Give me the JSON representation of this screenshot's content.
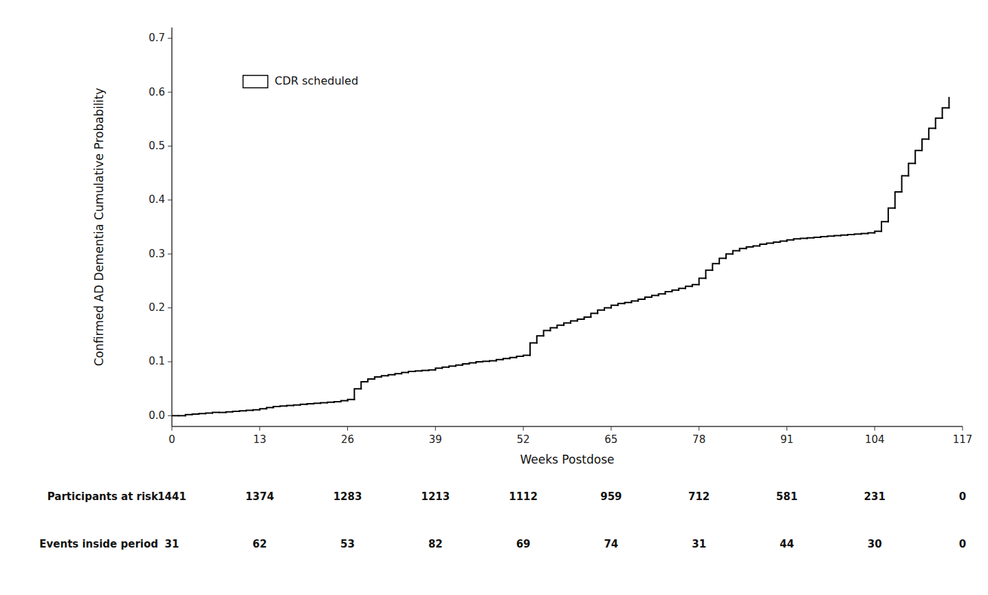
{
  "chart_data": {
    "type": "step",
    "xlabel": "Weeks Postdose",
    "ylabel": "Confirmed AD Dementia Cumulative Probability",
    "xlim": [
      0,
      117
    ],
    "ylim": [
      -0.02,
      0.72
    ],
    "xticks": [
      0,
      13,
      26,
      39,
      52,
      65,
      78,
      91,
      104,
      117
    ],
    "yticks": [
      {
        "value": 0.0,
        "label": "0.0"
      },
      0.1,
      0.2,
      0.3,
      0.4,
      0.5,
      0.6,
      0.7
    ],
    "grid": false,
    "legend": "upper left",
    "x": [
      0,
      1,
      2,
      3,
      4,
      5,
      6,
      7,
      8,
      9,
      10,
      11,
      12,
      13,
      14,
      15,
      16,
      17,
      18,
      19,
      20,
      21,
      22,
      23,
      24,
      25,
      26,
      27,
      28,
      29,
      30,
      31,
      32,
      33,
      34,
      35,
      36,
      37,
      38,
      39,
      40,
      41,
      42,
      43,
      44,
      45,
      46,
      47,
      48,
      49,
      50,
      51,
      52,
      53,
      54,
      55,
      56,
      57,
      58,
      59,
      60,
      61,
      62,
      63,
      64,
      65,
      66,
      67,
      68,
      69,
      70,
      71,
      72,
      73,
      74,
      75,
      76,
      77,
      78,
      79,
      80,
      81,
      82,
      83,
      84,
      85,
      86,
      87,
      88,
      89,
      90,
      91,
      92,
      93,
      94,
      95,
      96,
      97,
      98,
      99,
      100,
      101,
      102,
      103,
      104,
      105,
      106,
      107,
      108,
      109,
      110,
      111,
      112,
      113,
      114,
      115
    ],
    "series": [
      {
        "name": "CDR scheduled",
        "color": "#000000",
        "values": [
          0.0,
          0.0,
          0.002,
          0.003,
          0.004,
          0.005,
          0.006,
          0.006,
          0.007,
          0.008,
          0.009,
          0.01,
          0.011,
          0.013,
          0.015,
          0.017,
          0.018,
          0.019,
          0.02,
          0.021,
          0.022,
          0.023,
          0.024,
          0.025,
          0.026,
          0.028,
          0.03,
          0.05,
          0.063,
          0.068,
          0.072,
          0.074,
          0.076,
          0.078,
          0.08,
          0.082,
          0.083,
          0.084,
          0.085,
          0.088,
          0.09,
          0.092,
          0.094,
          0.096,
          0.098,
          0.1,
          0.101,
          0.102,
          0.104,
          0.106,
          0.108,
          0.11,
          0.112,
          0.135,
          0.148,
          0.158,
          0.163,
          0.168,
          0.172,
          0.176,
          0.179,
          0.183,
          0.19,
          0.196,
          0.2,
          0.205,
          0.208,
          0.21,
          0.213,
          0.216,
          0.22,
          0.223,
          0.226,
          0.23,
          0.233,
          0.236,
          0.24,
          0.243,
          0.255,
          0.27,
          0.282,
          0.292,
          0.3,
          0.306,
          0.31,
          0.313,
          0.315,
          0.318,
          0.32,
          0.322,
          0.324,
          0.326,
          0.328,
          0.329,
          0.33,
          0.331,
          0.332,
          0.333,
          0.334,
          0.335,
          0.336,
          0.337,
          0.338,
          0.339,
          0.342,
          0.36,
          0.385,
          0.415,
          0.445,
          0.468,
          0.492,
          0.513,
          0.533,
          0.552,
          0.571,
          0.59
        ]
      }
    ],
    "table": {
      "x": [
        0,
        13,
        26,
        39,
        52,
        65,
        78,
        91,
        104,
        117
      ],
      "rows": [
        {
          "label": "Participants at risk",
          "values": [
            1441,
            1374,
            1283,
            1213,
            1112,
            959,
            712,
            581,
            231,
            0
          ]
        },
        {
          "label": "Events inside period",
          "values": [
            31,
            62,
            53,
            82,
            69,
            74,
            31,
            44,
            30,
            0
          ]
        }
      ]
    }
  }
}
